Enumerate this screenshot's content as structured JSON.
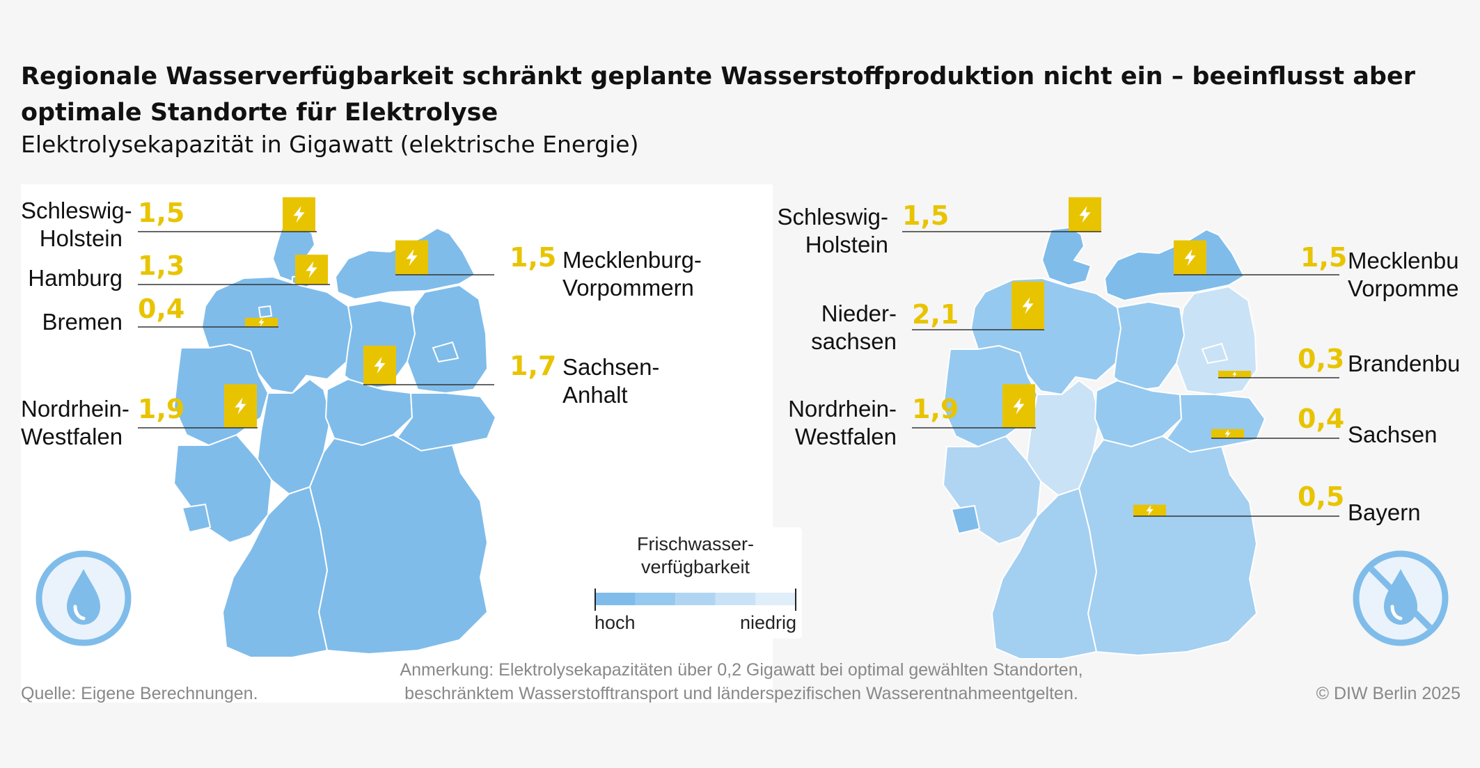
{
  "title": "Regionale Wasserverfügbarkeit schränkt geplante Wasserstoffproduktion nicht ein – beeinflusst aber optimale Standorte für Elektrolyse",
  "subtitle": "Elektrolysekapazität in Gigawatt (elektrische Energie)",
  "left_map": {
    "labels": [
      {
        "name": "Schleswig-\nHolstein",
        "value": "1,5",
        "gw": 1.5
      },
      {
        "name": "Hamburg",
        "value": "1,3",
        "gw": 1.3
      },
      {
        "name": "Bremen",
        "value": "0,4",
        "gw": 0.4
      },
      {
        "name": "Nordrhein-\nWestfalen",
        "value": "1,9",
        "gw": 1.9
      },
      {
        "name": "Mecklenburg-\nVorpommern",
        "value": "1,5",
        "gw": 1.5
      },
      {
        "name": "Sachsen-\nAnhalt",
        "value": "1,7",
        "gw": 1.7
      }
    ],
    "icon": "water-drop-icon"
  },
  "right_map": {
    "labels": [
      {
        "name": "Schleswig-\nHolstein",
        "value": "1,5",
        "gw": 1.5
      },
      {
        "name": "Nieder-\nsachsen",
        "value": "2,1",
        "gw": 2.1
      },
      {
        "name": "Nordrhein-\nWestfalen",
        "value": "1,9",
        "gw": 1.9
      },
      {
        "name": "Mecklenburg-\nVorpommern",
        "value": "1,5",
        "gw": 1.5
      },
      {
        "name": "Brandenburg",
        "value": "0,3",
        "gw": 0.3
      },
      {
        "name": "Sachsen",
        "value": "0,4",
        "gw": 0.4
      },
      {
        "name": "Bayern",
        "value": "0,5",
        "gw": 0.5
      }
    ],
    "icon": "no-water-drop-icon"
  },
  "legend": {
    "title": "Frischwasser-\nverfügbarkeit",
    "low_label": "hoch",
    "high_label": "niedrig",
    "colors": [
      "#7fbcea",
      "#96c9ef",
      "#b0d5f3",
      "#c9e2f6",
      "#e0eefa"
    ]
  },
  "source": "Quelle: Eigene Berechnungen.",
  "note": "Anmerkung: Elektrolysekapazitäten über 0,2 Gigawatt bei optimal gewählten Standorten, beschränktem Wasserstofftransport und länderspezifischen Wasserentnahmeentgelten.",
  "copyright": "© DIW Berlin 2025",
  "colors": {
    "accent": "#e8c400",
    "map_high": "#7fbcea",
    "icon": "#7fbcea"
  }
}
